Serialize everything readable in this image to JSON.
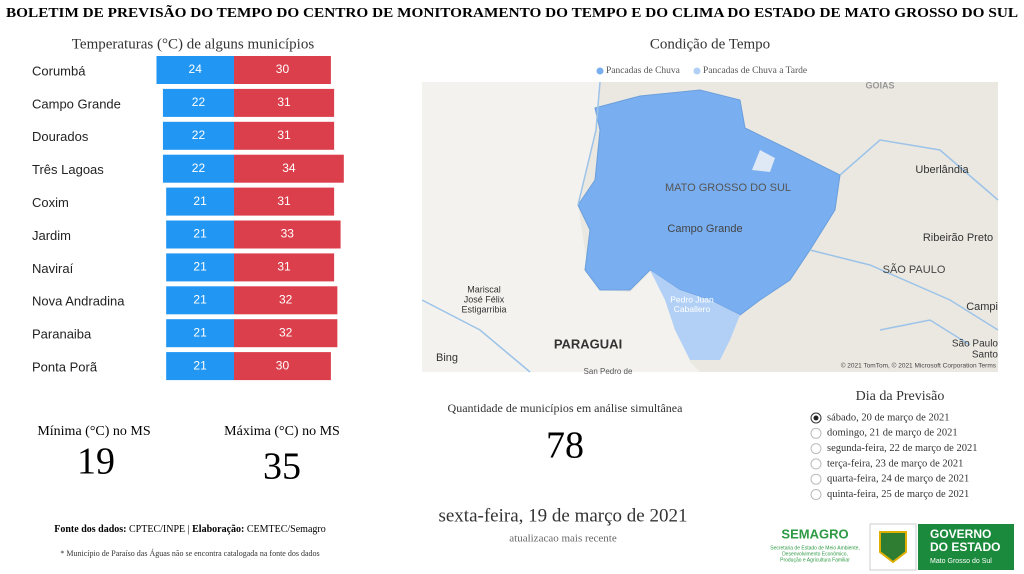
{
  "header": {
    "title": "BOLETIM DE PREVISÃO DO TEMPO DO CENTRO DE MONITORAMENTO DO TEMPO E DO CLIMA DO ESTADO DE MATO GROSSO DO SUL"
  },
  "chart_data": {
    "type": "bar",
    "title": "Temperaturas (°C) de alguns municípios",
    "categories": [
      "Corumbá",
      "Campo Grande",
      "Dourados",
      "Três Lagoas",
      "Coxim",
      "Jardim",
      "Naviraí",
      "Nova Andradina",
      "Paranaiba",
      "Ponta Porã"
    ],
    "series": [
      {
        "color": "#2196f3",
        "values": [
          24,
          22,
          22,
          22,
          21,
          21,
          21,
          21,
          21,
          21
        ]
      },
      {
        "color": "#dc3f4c",
        "values": [
          30,
          31,
          31,
          34,
          31,
          33,
          31,
          32,
          32,
          30
        ]
      }
    ]
  },
  "summary": {
    "min_label": "Mínima (°C) no MS",
    "min_value": 19,
    "max_label": "Máxima (°C) no MS",
    "max_value": 35
  },
  "source": {
    "parts": [
      "Fonte dos dados:",
      " CPTEC/INPE | ",
      "Elaboração:",
      " CEMTEC/Semagro"
    ]
  },
  "footnote": "* Município de Paraíso das Águas não se encontra catalogada na fonte dos dados",
  "map": {
    "title": "Condição de Tempo",
    "legend": [
      {
        "name": "Pancadas de Chuva",
        "color": "#79aef0"
      },
      {
        "name": "Pancadas de Chuva a Tarde",
        "color": "#b2d0f6"
      }
    ],
    "labels": [
      [
        "GOIAS"
      ],
      [
        "MATO GROSSO DO SUL"
      ],
      [
        "Campo Grande"
      ],
      [
        "Uberlândia"
      ],
      [
        "Ribeirão Preto"
      ],
      [
        "SÃO PAULO"
      ],
      [
        "Mariscal",
        "José Félix",
        "Estigarribia"
      ],
      [
        "Pedro Juan",
        "Caballero"
      ],
      [
        "PARAGUAI"
      ],
      [
        "Campi"
      ],
      [
        "São Paulo",
        "Santo"
      ],
      [
        "San Pedro de"
      ]
    ],
    "provider": "Bing",
    "attribution": "© 2021 TomTom, © 2021 Microsoft Corporation  Terms"
  },
  "count": {
    "label": "Quantidade de municípios em análise simultânea",
    "value": 78
  },
  "date": {
    "value": "sexta-feira, 19 de março de 2021",
    "note": "atualizacao mais recente"
  },
  "forecast": {
    "title": "Dia da Previsão",
    "selected": 0,
    "options": [
      "sábado, 20 de março de 2021",
      "domingo, 21 de março de 2021",
      "segunda-feira, 22 de março de 2021",
      "terça-feira, 23 de março de 2021",
      "quarta-feira, 24 de março de 2021",
      "quinta-feira, 25 de março de 2021"
    ]
  },
  "logos": {
    "semagro": "SEMAGRO",
    "semagro_sub": [
      "Secretaria de Estado de Meio Ambiente,",
      "Desenvolvimento Econômico,",
      "Produção e Agricultura Familiar"
    ],
    "gov": [
      "GOVERNO",
      "DO ESTADO"
    ],
    "gov_sub": "Mato Grosso do Sul"
  }
}
